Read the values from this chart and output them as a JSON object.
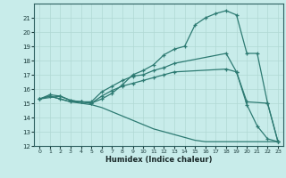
{
  "xlabel": "Humidex (Indice chaleur)",
  "bg_color": "#c8ecea",
  "line_color": "#2d7a72",
  "grid_color": "#b0d8d4",
  "xlim": [
    -0.5,
    23.5
  ],
  "ylim": [
    12,
    22
  ],
  "xticks": [
    0,
    1,
    2,
    3,
    4,
    5,
    6,
    7,
    8,
    9,
    10,
    11,
    12,
    13,
    14,
    15,
    16,
    17,
    18,
    19,
    20,
    21,
    22,
    23
  ],
  "yticks": [
    12,
    13,
    14,
    15,
    16,
    17,
    18,
    19,
    20,
    21
  ],
  "curve1_x": [
    0,
    1,
    2,
    3,
    4,
    5,
    6,
    7,
    8,
    9,
    10,
    11,
    12,
    13,
    14,
    15,
    16,
    17,
    18,
    19,
    20,
    21,
    22,
    23
  ],
  "curve1_y": [
    15.3,
    15.6,
    15.5,
    15.2,
    15.1,
    15.0,
    15.3,
    15.7,
    16.3,
    17.0,
    17.3,
    17.7,
    18.4,
    18.8,
    19.0,
    20.5,
    21.0,
    21.3,
    21.5,
    21.2,
    18.5,
    18.5,
    15.0,
    12.3
  ],
  "curve2_x": [
    0,
    2,
    3,
    4,
    5,
    6,
    7,
    8,
    9,
    10,
    11,
    12,
    13,
    18,
    19,
    20,
    22,
    23
  ],
  "curve2_y": [
    15.3,
    15.5,
    15.2,
    15.1,
    15.1,
    15.8,
    16.2,
    16.6,
    16.9,
    17.0,
    17.3,
    17.5,
    17.8,
    18.5,
    17.2,
    15.1,
    15.0,
    12.3
  ],
  "curve3_x": [
    0,
    1,
    2,
    3,
    4,
    5,
    6,
    7,
    8,
    9,
    10,
    11,
    12,
    13,
    18,
    19,
    20,
    21,
    22,
    23
  ],
  "curve3_y": [
    15.3,
    15.5,
    15.3,
    15.1,
    15.1,
    15.0,
    15.5,
    15.9,
    16.2,
    16.4,
    16.6,
    16.8,
    17.0,
    17.2,
    17.4,
    17.2,
    14.9,
    13.4,
    12.5,
    12.3
  ],
  "curve4_x": [
    0,
    1,
    2,
    3,
    4,
    5,
    6,
    7,
    8,
    9,
    10,
    11,
    12,
    13,
    14,
    15,
    16,
    17,
    18,
    19,
    20,
    21,
    22,
    23
  ],
  "curve4_y": [
    15.3,
    15.5,
    15.3,
    15.1,
    15.0,
    14.9,
    14.7,
    14.4,
    14.1,
    13.8,
    13.5,
    13.2,
    13.0,
    12.8,
    12.6,
    12.4,
    12.3,
    12.3,
    12.3,
    12.3,
    12.3,
    12.3,
    12.3,
    12.3
  ]
}
